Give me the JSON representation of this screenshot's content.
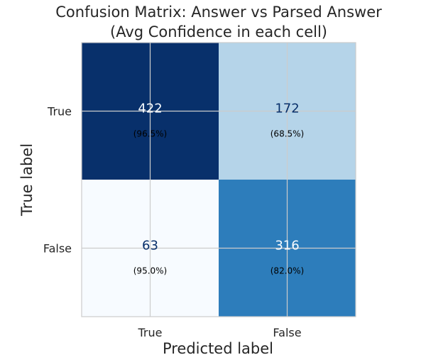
{
  "chart_data": {
    "type": "heatmap",
    "title_lines": [
      "Confusion Matrix: Answer vs Parsed Answer",
      "(Avg Confidence in each cell)"
    ],
    "xlabel": "Predicted label",
    "ylabel": "True label",
    "x_categories": [
      "True",
      "False"
    ],
    "y_categories": [
      "True",
      "False"
    ],
    "cells": [
      [
        {
          "count": "422",
          "confidence": "(96.5%)",
          "value": 422
        },
        {
          "count": "172",
          "confidence": "(68.5%)",
          "value": 172
        }
      ],
      [
        {
          "count": "63",
          "confidence": "(95.0%)",
          "value": 63
        },
        {
          "count": "316",
          "confidence": "(82.0%)",
          "value": 316
        }
      ]
    ],
    "colormap": "Blues",
    "grid": true,
    "colors": {
      "min_cell": "#f7fbff",
      "max_cell": "#08306b",
      "grid_line": "#cccccc",
      "dark_text": "#08306b",
      "light_text": "#f7fbff"
    }
  }
}
